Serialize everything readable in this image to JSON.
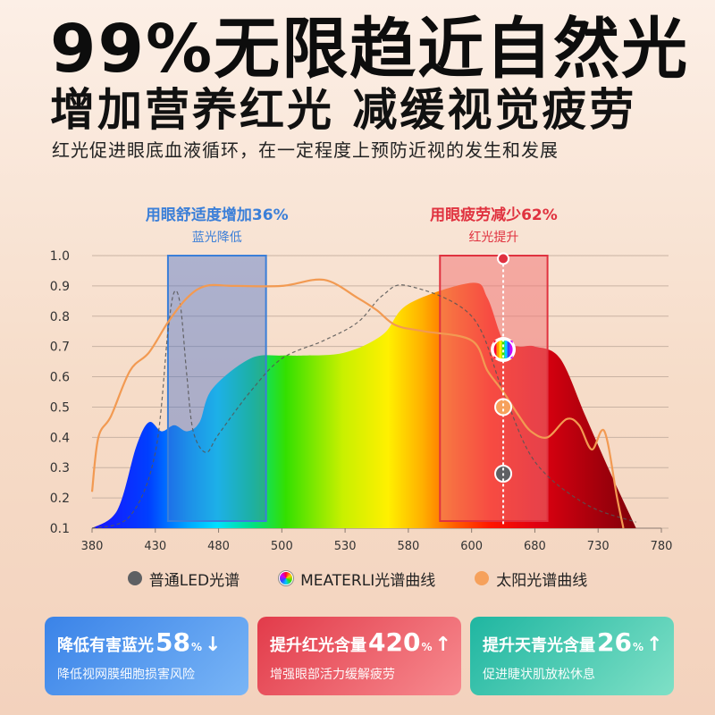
{
  "headline": "99%无限趋近自然光",
  "subheadline": "增加营养红光 减缓视觉疲劳",
  "tagline": "红光促进眼底血液循环，在一定程度上预防近视的发生和发展",
  "chart_data": {
    "type": "line",
    "x_ticks": [
      380,
      430,
      480,
      500,
      530,
      580,
      600,
      680,
      730,
      780
    ],
    "y_ticks": [
      "0.1",
      "0.2",
      "0.3",
      "0.4",
      "0.5",
      "0.6",
      "0.7",
      "0.8",
      "0.9",
      "1.0"
    ],
    "ylim": [
      0.1,
      1.0
    ],
    "grid": true,
    "highlight_regions": [
      {
        "title": "用眼舒适度增加36%",
        "subtitle": "蓝光降低",
        "color": "#3b7fd8",
        "x_range": [
          440,
          495
        ]
      },
      {
        "title": "用眼疲劳减少62%",
        "subtitle": "红光提升",
        "color": "#e0323f",
        "x_range": [
          590,
          690
        ]
      }
    ],
    "series": [
      {
        "name": "MEATERLI光谱曲线",
        "style": "rainbow-filled-area",
        "x": [
          380,
          400,
          415,
          425,
          435,
          445,
          455,
          465,
          475,
          490,
          500,
          510,
          530,
          560,
          580,
          600,
          620,
          640,
          660,
          680,
          700,
          720,
          740,
          760
        ],
        "y": [
          0.1,
          0.16,
          0.37,
          0.45,
          0.42,
          0.44,
          0.42,
          0.45,
          0.56,
          0.66,
          0.67,
          0.67,
          0.68,
          0.74,
          0.84,
          0.91,
          0.86,
          0.72,
          0.7,
          0.7,
          0.66,
          0.47,
          0.28,
          0.1
        ]
      },
      {
        "name": "普通LED光谱",
        "style": "dashed",
        "x": [
          380,
          410,
          430,
          440,
          445,
          450,
          455,
          460,
          470,
          480,
          490,
          500,
          520,
          540,
          560,
          580,
          600,
          640,
          680,
          720,
          760
        ],
        "y": [
          0.1,
          0.14,
          0.35,
          0.75,
          0.88,
          0.83,
          0.6,
          0.42,
          0.35,
          0.41,
          0.55,
          0.66,
          0.72,
          0.78,
          0.87,
          0.9,
          0.8,
          0.55,
          0.32,
          0.18,
          0.12
        ]
      },
      {
        "name": "太阳光谱曲线",
        "style": "orange-line",
        "x": [
          380,
          385,
          395,
          410,
          425,
          440,
          455,
          470,
          485,
          500,
          520,
          540,
          555,
          570,
          585,
          600,
          620,
          640,
          660,
          675,
          690,
          705,
          715,
          725,
          735,
          745,
          750
        ],
        "y": [
          0.22,
          0.4,
          0.47,
          0.62,
          0.68,
          0.78,
          0.86,
          0.9,
          0.9,
          0.9,
          0.92,
          0.86,
          0.82,
          0.77,
          0.75,
          0.72,
          0.62,
          0.55,
          0.47,
          0.42,
          0.4,
          0.46,
          0.44,
          0.36,
          0.42,
          0.2,
          0.1
        ]
      }
    ],
    "markers": [
      {
        "x": 640,
        "y": 0.69,
        "kind": "rainbow"
      },
      {
        "x": 640,
        "y": 0.5,
        "kind": "orange"
      },
      {
        "x": 640,
        "y": 0.28,
        "kind": "gray"
      },
      {
        "x": 640,
        "y": 0.99,
        "kind": "pin"
      }
    ]
  },
  "legend": [
    {
      "label": "普通LED光谱",
      "icon": "gray-dot"
    },
    {
      "label": "MEATERLI光谱曲线",
      "icon": "rainbow-dot"
    },
    {
      "label": "太阳光谱曲线",
      "icon": "orange-dot"
    }
  ],
  "cards": [
    {
      "label": "降低有害蓝光",
      "number": "58",
      "unit": "%",
      "arrow": "down",
      "desc": "降低视网膜细胞损害风险"
    },
    {
      "label": "提升红光含量",
      "number": "420",
      "unit": "%",
      "arrow": "up",
      "desc": "增强眼部活力缓解疲劳"
    },
    {
      "label": "提升天青光含量",
      "number": "26",
      "unit": "%",
      "arrow": "up",
      "desc": "促进睫状肌放松休息"
    }
  ]
}
